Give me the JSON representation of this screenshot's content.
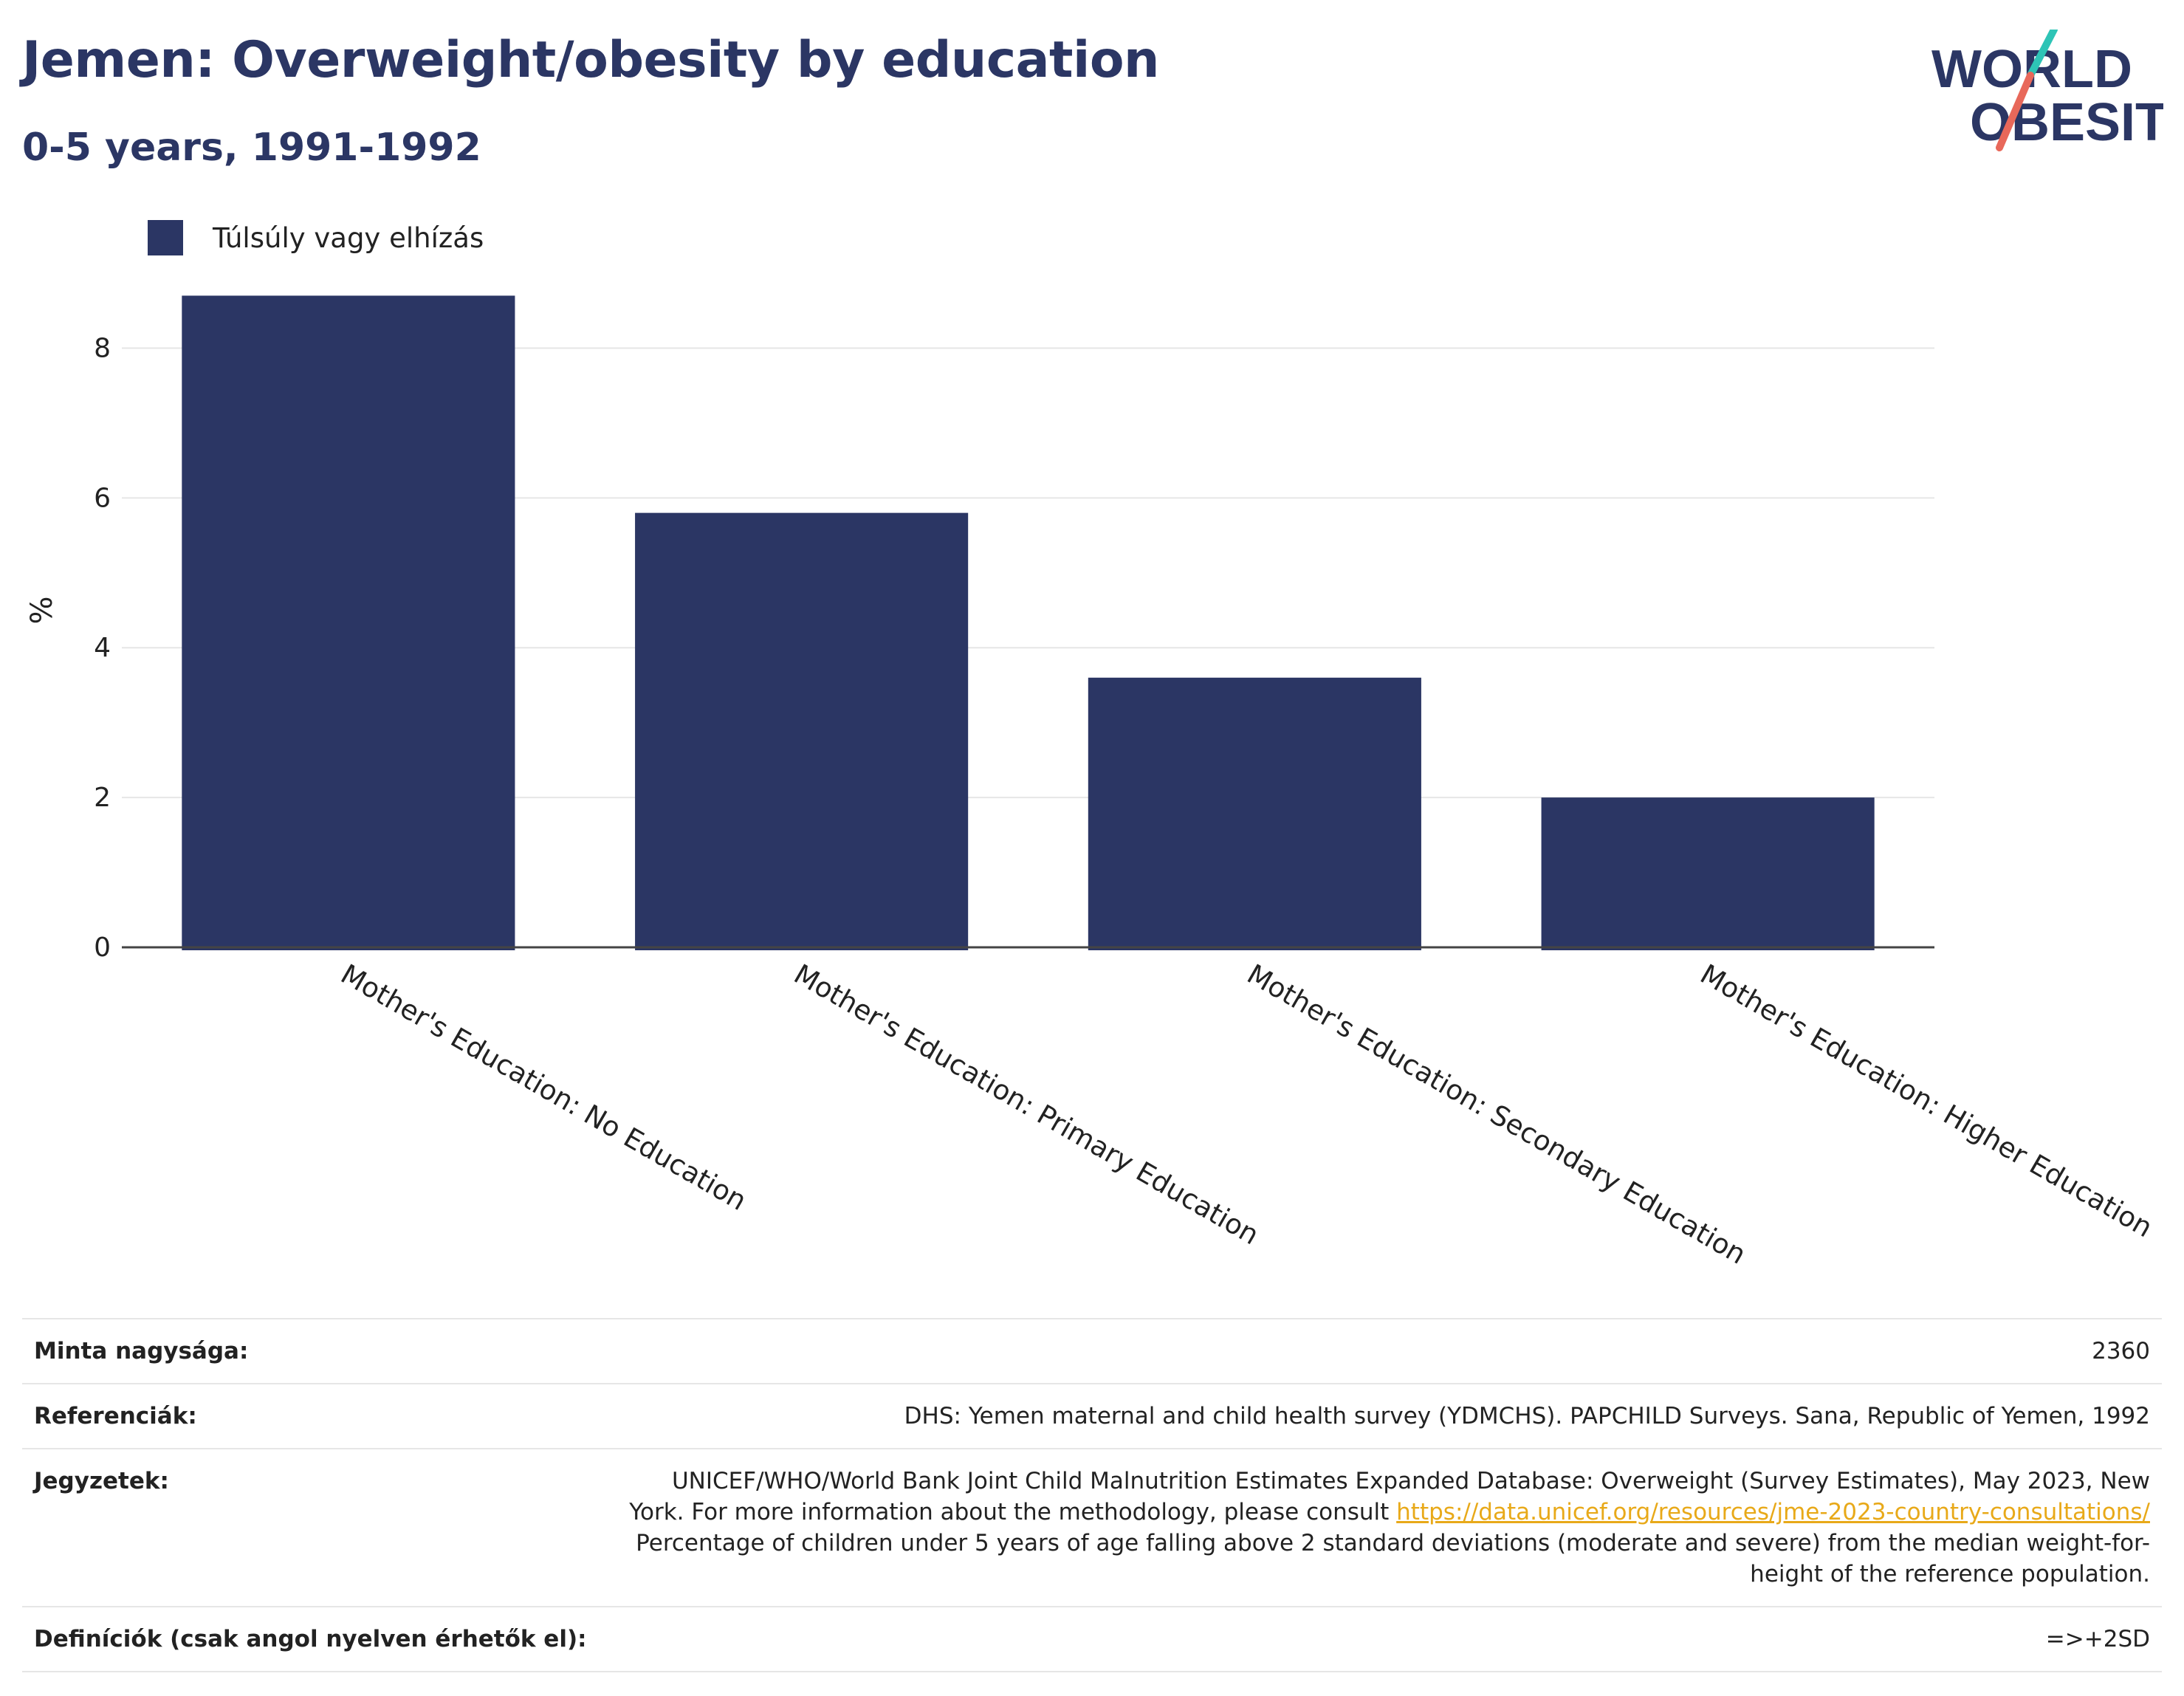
{
  "header": {
    "title": "Jemen: Overweight/obesity by education",
    "subtitle": "0-5 years, 1991-1992"
  },
  "logo": {
    "line1": "WORLD",
    "line2": "OBESITY",
    "slash_colors": [
      "#2ec4b6",
      "#e8685a"
    ]
  },
  "legend": {
    "label": "Túlsúly vagy elhízás",
    "color": "#2b3664"
  },
  "chart_data": {
    "type": "bar",
    "categories": [
      "Mother's Education: No Education",
      "Mother's Education: Primary Education",
      "Mother's Education: Secondary Education",
      "Mother's Education: Higher Education"
    ],
    "series": [
      {
        "name": "Túlsúly vagy elhízás",
        "values": [
          8.7,
          5.8,
          3.6,
          2.0
        ],
        "color": "#2b3664"
      }
    ],
    "ylabel": "%",
    "ylim": [
      0,
      9
    ],
    "yticks": [
      0,
      2,
      4,
      6,
      8
    ],
    "grid": true
  },
  "info": {
    "sample_label": "Minta nagysága:",
    "sample_value": "2360",
    "references_label": "Referenciák:",
    "references_value": "DHS: Yemen maternal and child health survey (YDMCHS). PAPCHILD Surveys. Sana, Republic of Yemen, 1992",
    "notes_label": "Jegyzetek:",
    "notes_text1": "UNICEF/WHO/World Bank Joint Child Malnutrition Estimates Expanded Database: Overweight (Survey Estimates), May 2023, New York. For more information about the methodology, please consult ",
    "notes_link": "https://data.unicef.org/resources/jme-2023-country-consultations/",
    "notes_text2": "Percentage of children under 5 years of age falling above 2 standard deviations (moderate and severe) from the median weight-for-height of the reference population.",
    "definitions_label": "Definíciók (csak angol nyelven érhetők el):",
    "definitions_value": "=>+2SD"
  }
}
